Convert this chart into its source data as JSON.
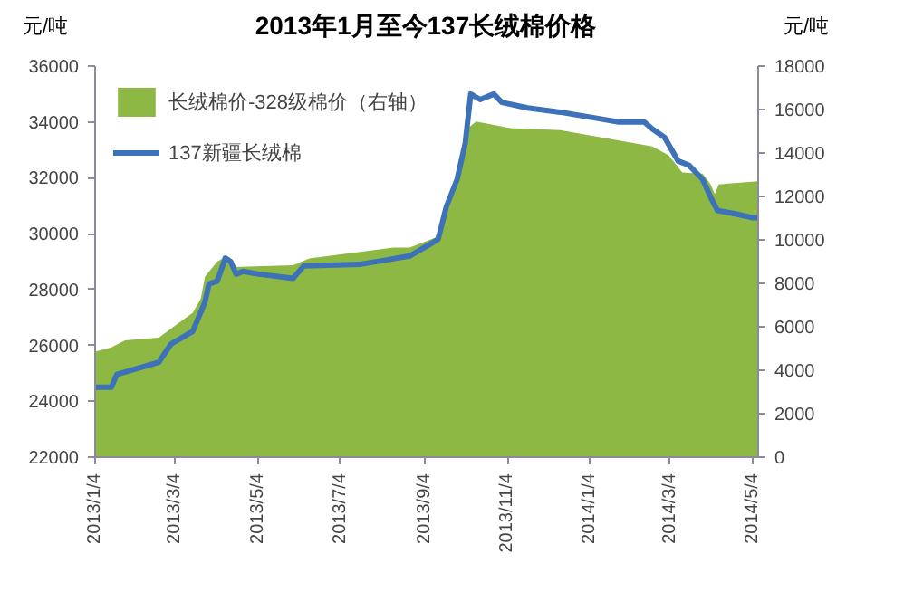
{
  "chart_data": {
    "type": "line",
    "title": "2013年1月至今137长绒棉价格",
    "ylabel": "元/吨",
    "y2label": "元/吨",
    "xlim": [
      "2013-01-04",
      "2014-05-08"
    ],
    "xticks": [
      {
        "value": "2013-01-04",
        "label": "2013/1/4"
      },
      {
        "value": "2013-03-04",
        "label": "2013/3/4"
      },
      {
        "value": "2013-05-04",
        "label": "2013/5/4"
      },
      {
        "value": "2013-07-04",
        "label": "2013/7/4"
      },
      {
        "value": "2013-09-04",
        "label": "2013/9/4"
      },
      {
        "value": "2013-11-04",
        "label": "2013/11/4"
      },
      {
        "value": "2014-01-04",
        "label": "2014/1/4"
      },
      {
        "value": "2014-03-04",
        "label": "2014/3/4"
      },
      {
        "value": "2014-05-04",
        "label": "2014/5/4"
      }
    ],
    "ylim": [
      22000,
      36000
    ],
    "yticks": [
      22000,
      24000,
      26000,
      28000,
      30000,
      32000,
      34000,
      36000
    ],
    "y2lim": [
      0,
      18000
    ],
    "y2ticks": [
      0,
      2000,
      4000,
      6000,
      8000,
      10000,
      12000,
      14000,
      16000,
      18000
    ],
    "grid": false,
    "legend": "top left",
    "marker": "none",
    "line_style": "solid",
    "series": [
      {
        "name": "长绒棉价-328级棉价（右轴）",
        "type": "area",
        "axis": "y2",
        "color": "#8db844",
        "x": [
          "2013-01-04",
          "2013-01-16",
          "2013-01-26",
          "2013-02-20",
          "2013-03-04",
          "2013-03-17",
          "2013-03-23",
          "2013-03-26",
          "2013-04-04",
          "2013-04-08",
          "2013-04-16",
          "2013-05-30",
          "2013-06-11",
          "2013-08-12",
          "2013-08-24",
          "2013-09-12",
          "2013-09-30",
          "2013-10-06",
          "2013-10-12",
          "2013-11-06",
          "2013-12-13",
          "2014-01-19",
          "2014-02-19",
          "2014-03-03",
          "2014-03-13",
          "2014-03-28",
          "2014-04-03",
          "2014-04-06",
          "2014-04-09",
          "2014-04-18",
          "2014-05-08"
        ],
        "values": [
          4850,
          5050,
          5380,
          5500,
          6050,
          6650,
          7300,
          8300,
          9000,
          9150,
          8750,
          8830,
          9150,
          9650,
          9650,
          10100,
          13050,
          15150,
          15450,
          15150,
          15050,
          14650,
          14300,
          13900,
          13100,
          13050,
          12550,
          12100,
          12550,
          12600,
          12700
        ]
      },
      {
        "name": "137新疆长绒棉",
        "type": "line",
        "color": "#3d72b8",
        "x": [
          "2013-01-04",
          "2013-01-16",
          "2013-01-20",
          "2013-02-20",
          "2013-03-01",
          "2013-03-17",
          "2013-03-26",
          "2013-03-29",
          "2013-04-04",
          "2013-04-07",
          "2013-04-10",
          "2013-04-14",
          "2013-04-18",
          "2013-04-23",
          "2013-05-05",
          "2013-05-30",
          "2013-06-07",
          "2013-07-18",
          "2013-08-12",
          "2013-08-24",
          "2013-09-09",
          "2013-09-14",
          "2013-09-20",
          "2013-09-28",
          "2013-10-04",
          "2013-10-08",
          "2013-10-15",
          "2013-10-25",
          "2013-10-31",
          "2013-11-19",
          "2013-12-13",
          "2014-01-07",
          "2014-01-25",
          "2014-02-13",
          "2014-02-19",
          "2014-02-28",
          "2014-03-10",
          "2014-03-18",
          "2014-03-28",
          "2014-04-03",
          "2014-04-08",
          "2014-04-22",
          "2014-05-04",
          "2014-05-08"
        ],
        "values": [
          24500,
          24500,
          24960,
          25400,
          26050,
          26500,
          27550,
          28200,
          28300,
          28700,
          29130,
          29000,
          28550,
          28650,
          28550,
          28400,
          28850,
          28900,
          29100,
          29200,
          29650,
          29800,
          30960,
          31950,
          33250,
          35000,
          34800,
          35000,
          34700,
          34500,
          34350,
          34150,
          34000,
          34000,
          33750,
          33450,
          32600,
          32450,
          31950,
          31300,
          30830,
          30700,
          30570,
          30570
        ]
      }
    ]
  }
}
